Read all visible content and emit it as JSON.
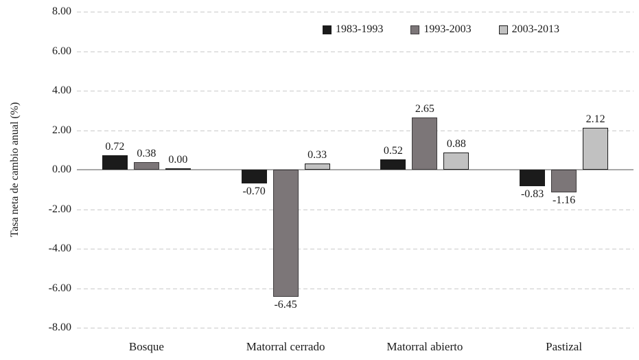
{
  "chart_data": {
    "type": "bar",
    "categories": [
      "Bosque",
      "Matorral cerrado",
      "Matorral abierto",
      "Pastizal"
    ],
    "series": [
      {
        "name": "1983-1993",
        "fill": "#1b1b1b",
        "border": "#1b1b1b",
        "values": [
          0.72,
          -0.7,
          0.52,
          -0.83
        ],
        "value_labels": [
          "0.72",
          "-0.70",
          "0.52",
          "-0.83"
        ]
      },
      {
        "name": "1993-2003",
        "fill": "#7c7678",
        "border": "#3d3b3c",
        "values": [
          0.38,
          -6.45,
          2.65,
          -1.16
        ],
        "value_labels": [
          "0.38",
          "-6.45",
          "2.65",
          "-1.16"
        ]
      },
      {
        "name": "2003-2013",
        "fill": "#c1c1c1",
        "border": "#1b1b1b",
        "values": [
          0.0,
          0.33,
          0.88,
          2.12
        ],
        "value_labels": [
          "0.00",
          "0.33",
          "0.88",
          "2.12"
        ]
      }
    ],
    "title": "",
    "xlabel": "",
    "ylabel": "Tasa neta de cambio anual (%)",
    "ylim": [
      -8,
      8
    ],
    "ytick_step": 2,
    "ytick_labels": [
      "8.00",
      "6.00",
      "4.00",
      "2.00",
      "0.00",
      "-2.00",
      "-4.00",
      "-6.00",
      "-8.00"
    ],
    "grid": "horizontal-dashed",
    "legend_position": "top-center"
  },
  "colors": {
    "gridline": "#c9c9c9",
    "zero_axis": "#a8a8a8",
    "text": "#1a1a1a",
    "background": "#ffffff"
  }
}
